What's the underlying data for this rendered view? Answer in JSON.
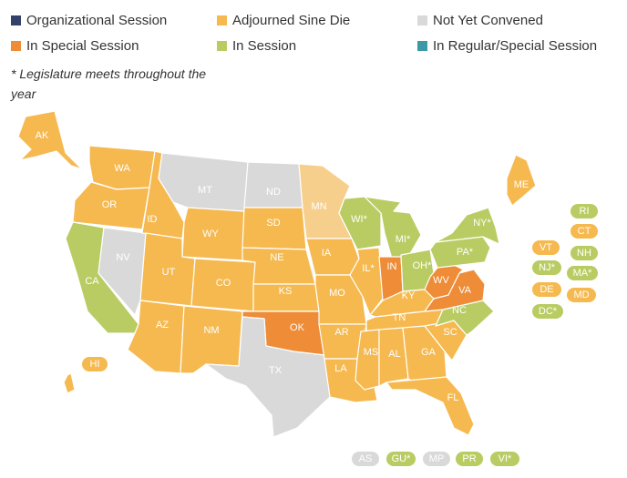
{
  "colors": {
    "organizational": "#33416b",
    "adjourned": "#f5b950",
    "notconvened": "#d9d9d9",
    "special": "#ee8c37",
    "insession": "#b9cc63",
    "regularspecial": "#3b9aa6",
    "lightadjourned": "#f7cf8c"
  },
  "legend": [
    {
      "label": "Organizational Session",
      "status": "organizational"
    },
    {
      "label": "Adjourned Sine Die",
      "status": "adjourned"
    },
    {
      "label": "Not Yet Convened",
      "status": "notconvened"
    },
    {
      "label": "In Special Session",
      "status": "special"
    },
    {
      "label": "In Session",
      "status": "insession"
    },
    {
      "label": "In Regular/Special Session",
      "status": "regularspecial"
    }
  ],
  "note": "* Legislature meets throughout the year",
  "states": [
    {
      "abbr": "AK",
      "status": "adjourned"
    },
    {
      "abbr": "WA",
      "status": "adjourned"
    },
    {
      "abbr": "OR",
      "status": "adjourned"
    },
    {
      "abbr": "CA",
      "status": "insession"
    },
    {
      "abbr": "NV",
      "status": "notconvened"
    },
    {
      "abbr": "ID",
      "status": "adjourned"
    },
    {
      "abbr": "MT",
      "status": "notconvened"
    },
    {
      "abbr": "WY",
      "status": "adjourned"
    },
    {
      "abbr": "UT",
      "status": "adjourned"
    },
    {
      "abbr": "CO",
      "status": "adjourned"
    },
    {
      "abbr": "AZ",
      "status": "adjourned"
    },
    {
      "abbr": "NM",
      "status": "adjourned"
    },
    {
      "abbr": "ND",
      "status": "notconvened"
    },
    {
      "abbr": "SD",
      "status": "adjourned"
    },
    {
      "abbr": "NE",
      "status": "adjourned"
    },
    {
      "abbr": "KS",
      "status": "adjourned"
    },
    {
      "abbr": "OK",
      "status": "special"
    },
    {
      "abbr": "TX",
      "status": "notconvened"
    },
    {
      "abbr": "MN",
      "status": "lightadjourned"
    },
    {
      "abbr": "IA",
      "status": "adjourned"
    },
    {
      "abbr": "MO",
      "status": "adjourned"
    },
    {
      "abbr": "AR",
      "status": "adjourned"
    },
    {
      "abbr": "LA",
      "status": "adjourned"
    },
    {
      "abbr": "WI*",
      "status": "insession"
    },
    {
      "abbr": "IL*",
      "status": "adjourned"
    },
    {
      "abbr": "MI*",
      "status": "insession"
    },
    {
      "abbr": "IN",
      "status": "special"
    },
    {
      "abbr": "OH*",
      "status": "insession"
    },
    {
      "abbr": "KY",
      "status": "adjourned"
    },
    {
      "abbr": "TN",
      "status": "adjourned"
    },
    {
      "abbr": "MS",
      "status": "adjourned"
    },
    {
      "abbr": "AL",
      "status": "adjourned"
    },
    {
      "abbr": "GA",
      "status": "adjourned"
    },
    {
      "abbr": "FL",
      "status": "adjourned"
    },
    {
      "abbr": "SC",
      "status": "adjourned"
    },
    {
      "abbr": "NC",
      "status": "insession"
    },
    {
      "abbr": "VA",
      "status": "special"
    },
    {
      "abbr": "WV",
      "status": "special"
    },
    {
      "abbr": "PA*",
      "status": "insession"
    },
    {
      "abbr": "NY*",
      "status": "insession"
    },
    {
      "abbr": "ME",
      "status": "adjourned"
    },
    {
      "abbr": "HI",
      "status": "adjourned"
    }
  ],
  "side_pills": [
    {
      "abbr": "RI",
      "status": "insession"
    },
    {
      "abbr": "CT",
      "status": "adjourned"
    },
    {
      "abbr": "VT",
      "status": "adjourned"
    },
    {
      "abbr": "NH",
      "status": "insession"
    },
    {
      "abbr": "NJ*",
      "status": "insession"
    },
    {
      "abbr": "MA*",
      "status": "insession"
    },
    {
      "abbr": "DE",
      "status": "adjourned"
    },
    {
      "abbr": "MD",
      "status": "adjourned"
    },
    {
      "abbr": "DC*",
      "status": "insession"
    }
  ],
  "territories": [
    {
      "abbr": "AS",
      "status": "notconvened"
    },
    {
      "abbr": "GU*",
      "status": "insession"
    },
    {
      "abbr": "MP",
      "status": "notconvened"
    },
    {
      "abbr": "PR",
      "status": "insession"
    },
    {
      "abbr": "VI*",
      "status": "insession"
    }
  ]
}
